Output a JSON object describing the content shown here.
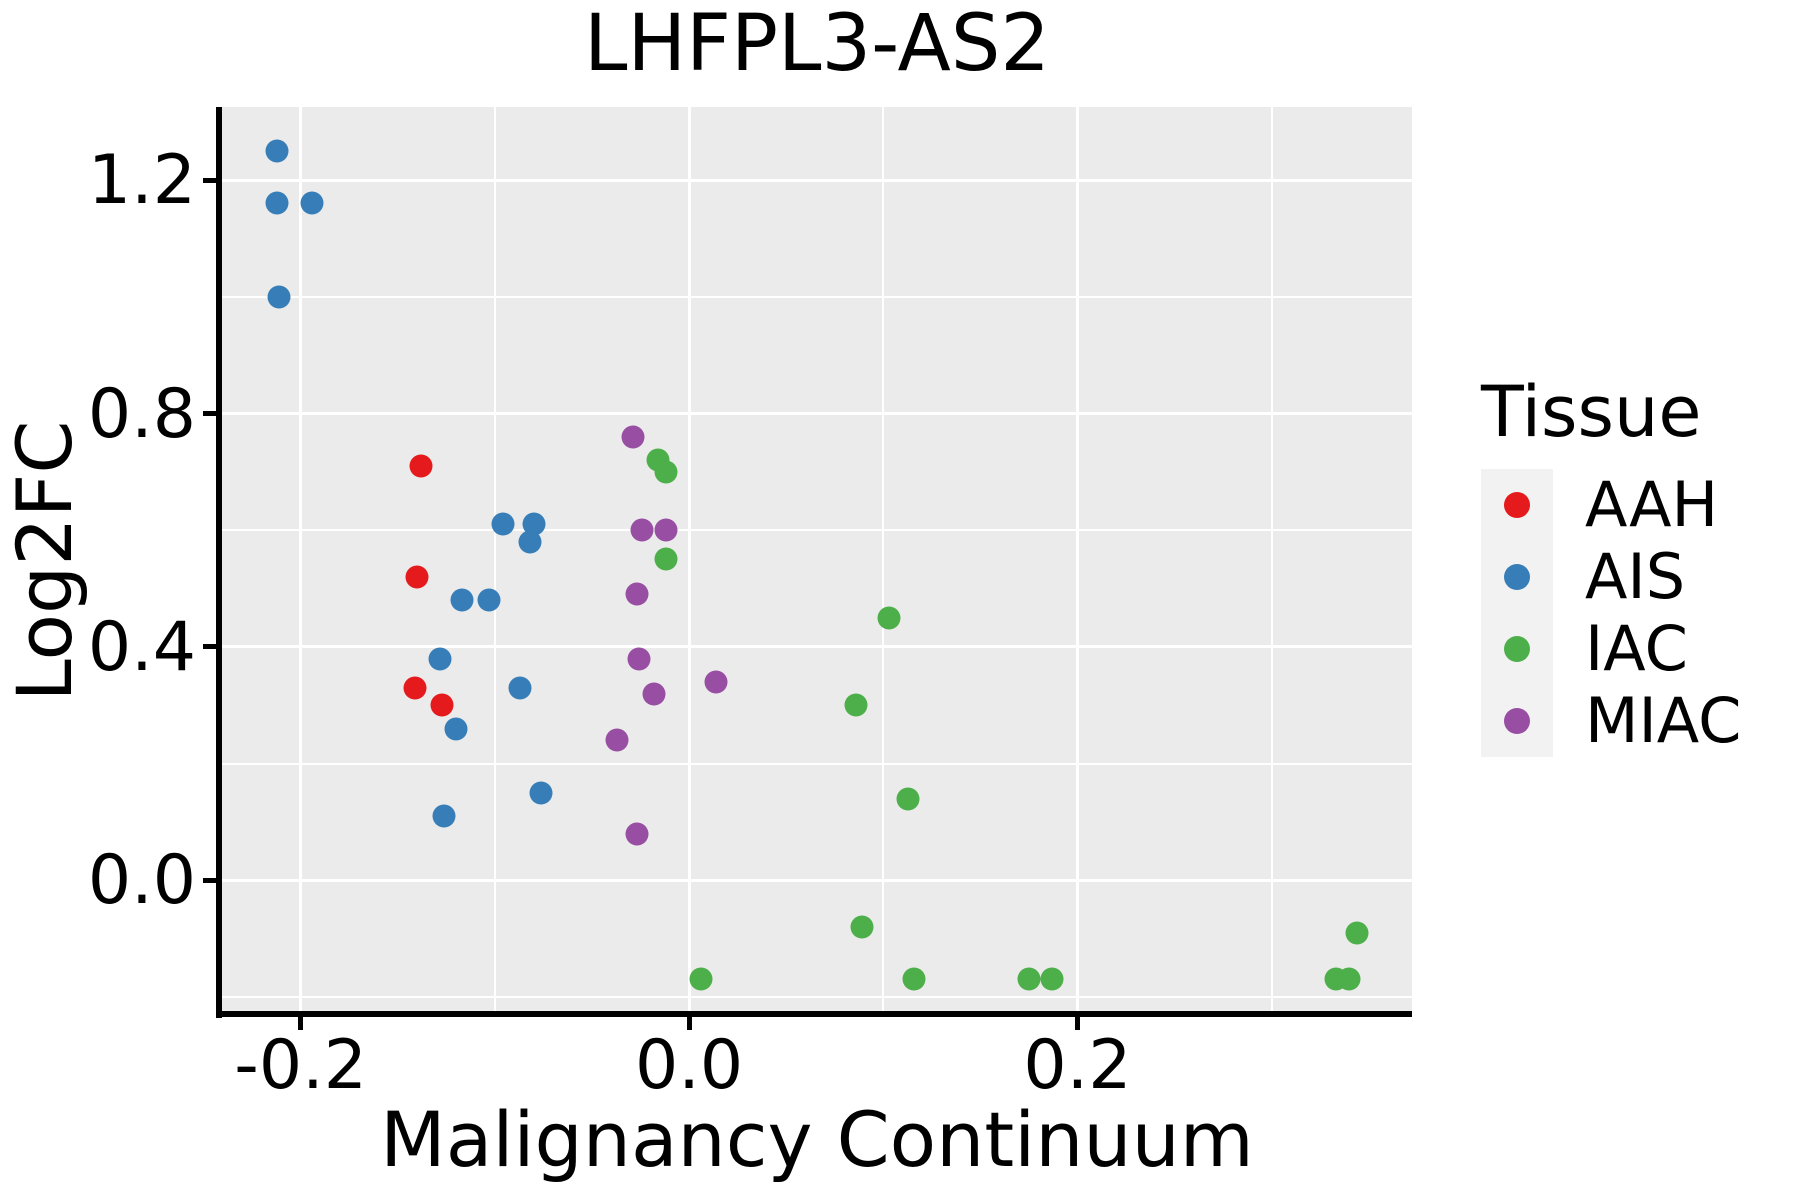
{
  "figure": {
    "title": "LHFPL3-AS2",
    "xlabel": "Malignancy Continuum",
    "ylabel": "Log2FC"
  },
  "legend": {
    "title": "Tissue",
    "items": [
      {
        "label": "AAH",
        "color": "#E41A1C"
      },
      {
        "label": "AIS",
        "color": "#377EB8"
      },
      {
        "label": "IAC",
        "color": "#4DAF4A"
      },
      {
        "label": "MIAC",
        "color": "#984EA3"
      }
    ]
  },
  "colors": {
    "panel_bg": "#EBEBEB",
    "grid": "#FFFFFF",
    "axis": "#000000",
    "legend_key_bg": "#F2F2F2",
    "text": "#000000"
  },
  "chart_data": {
    "type": "scatter",
    "title": "LHFPL3-AS2",
    "xlabel": "Malignancy Continuum",
    "ylabel": "Log2FC",
    "legend_title": "Tissue",
    "legend_position": "right",
    "grid": "major+minor",
    "xlim": [
      -0.2405,
      0.3723
    ],
    "ylim": [
      -0.2242,
      1.3254
    ],
    "x_ticks": {
      "values": [
        -0.2,
        0.0,
        0.2
      ],
      "labels": [
        "-0.2",
        "0.0",
        "0.2"
      ],
      "minor": [
        -0.1,
        0.1,
        0.3
      ]
    },
    "y_ticks": {
      "values": [
        0.0,
        0.4,
        0.8,
        1.2
      ],
      "labels": [
        "0.0",
        "0.4",
        "0.8",
        "1.2"
      ],
      "minor": [
        -0.2,
        0.2,
        0.6,
        1.0
      ]
    },
    "series": [
      {
        "name": "AAH",
        "color": "#E41A1C",
        "points": [
          [
            -0.138,
            0.71
          ],
          [
            -0.14,
            0.52
          ],
          [
            -0.141,
            0.33
          ],
          [
            -0.127,
            0.3
          ]
        ]
      },
      {
        "name": "AIS",
        "color": "#377EB8",
        "points": [
          [
            -0.212,
            1.25
          ],
          [
            -0.212,
            1.16
          ],
          [
            -0.194,
            1.16
          ],
          [
            -0.211,
            1.0
          ],
          [
            -0.096,
            0.61
          ],
          [
            -0.08,
            0.61
          ],
          [
            -0.082,
            0.58
          ],
          [
            -0.117,
            0.48
          ],
          [
            -0.103,
            0.48
          ],
          [
            -0.128,
            0.38
          ],
          [
            -0.087,
            0.33
          ],
          [
            -0.12,
            0.26
          ],
          [
            -0.076,
            0.15
          ],
          [
            -0.126,
            0.11
          ]
        ]
      },
      {
        "name": "IAC",
        "color": "#4DAF4A",
        "points": [
          [
            -0.016,
            0.72
          ],
          [
            -0.012,
            0.7
          ],
          [
            -0.012,
            0.55
          ],
          [
            0.103,
            0.45
          ],
          [
            0.086,
            0.3
          ],
          [
            0.113,
            0.14
          ],
          [
            0.089,
            -0.08
          ],
          [
            0.344,
            -0.09
          ],
          [
            0.006,
            -0.17
          ],
          [
            0.116,
            -0.17
          ],
          [
            0.175,
            -0.17
          ],
          [
            0.187,
            -0.17
          ],
          [
            0.333,
            -0.17
          ],
          [
            0.34,
            -0.17
          ]
        ]
      },
      {
        "name": "MIAC",
        "color": "#984EA3",
        "points": [
          [
            -0.029,
            0.76
          ],
          [
            -0.024,
            0.6
          ],
          [
            -0.012,
            0.6
          ],
          [
            -0.027,
            0.49
          ],
          [
            -0.026,
            0.38
          ],
          [
            -0.018,
            0.32
          ],
          [
            0.014,
            0.34
          ],
          [
            -0.037,
            0.24
          ],
          [
            -0.027,
            0.08
          ]
        ]
      }
    ]
  }
}
